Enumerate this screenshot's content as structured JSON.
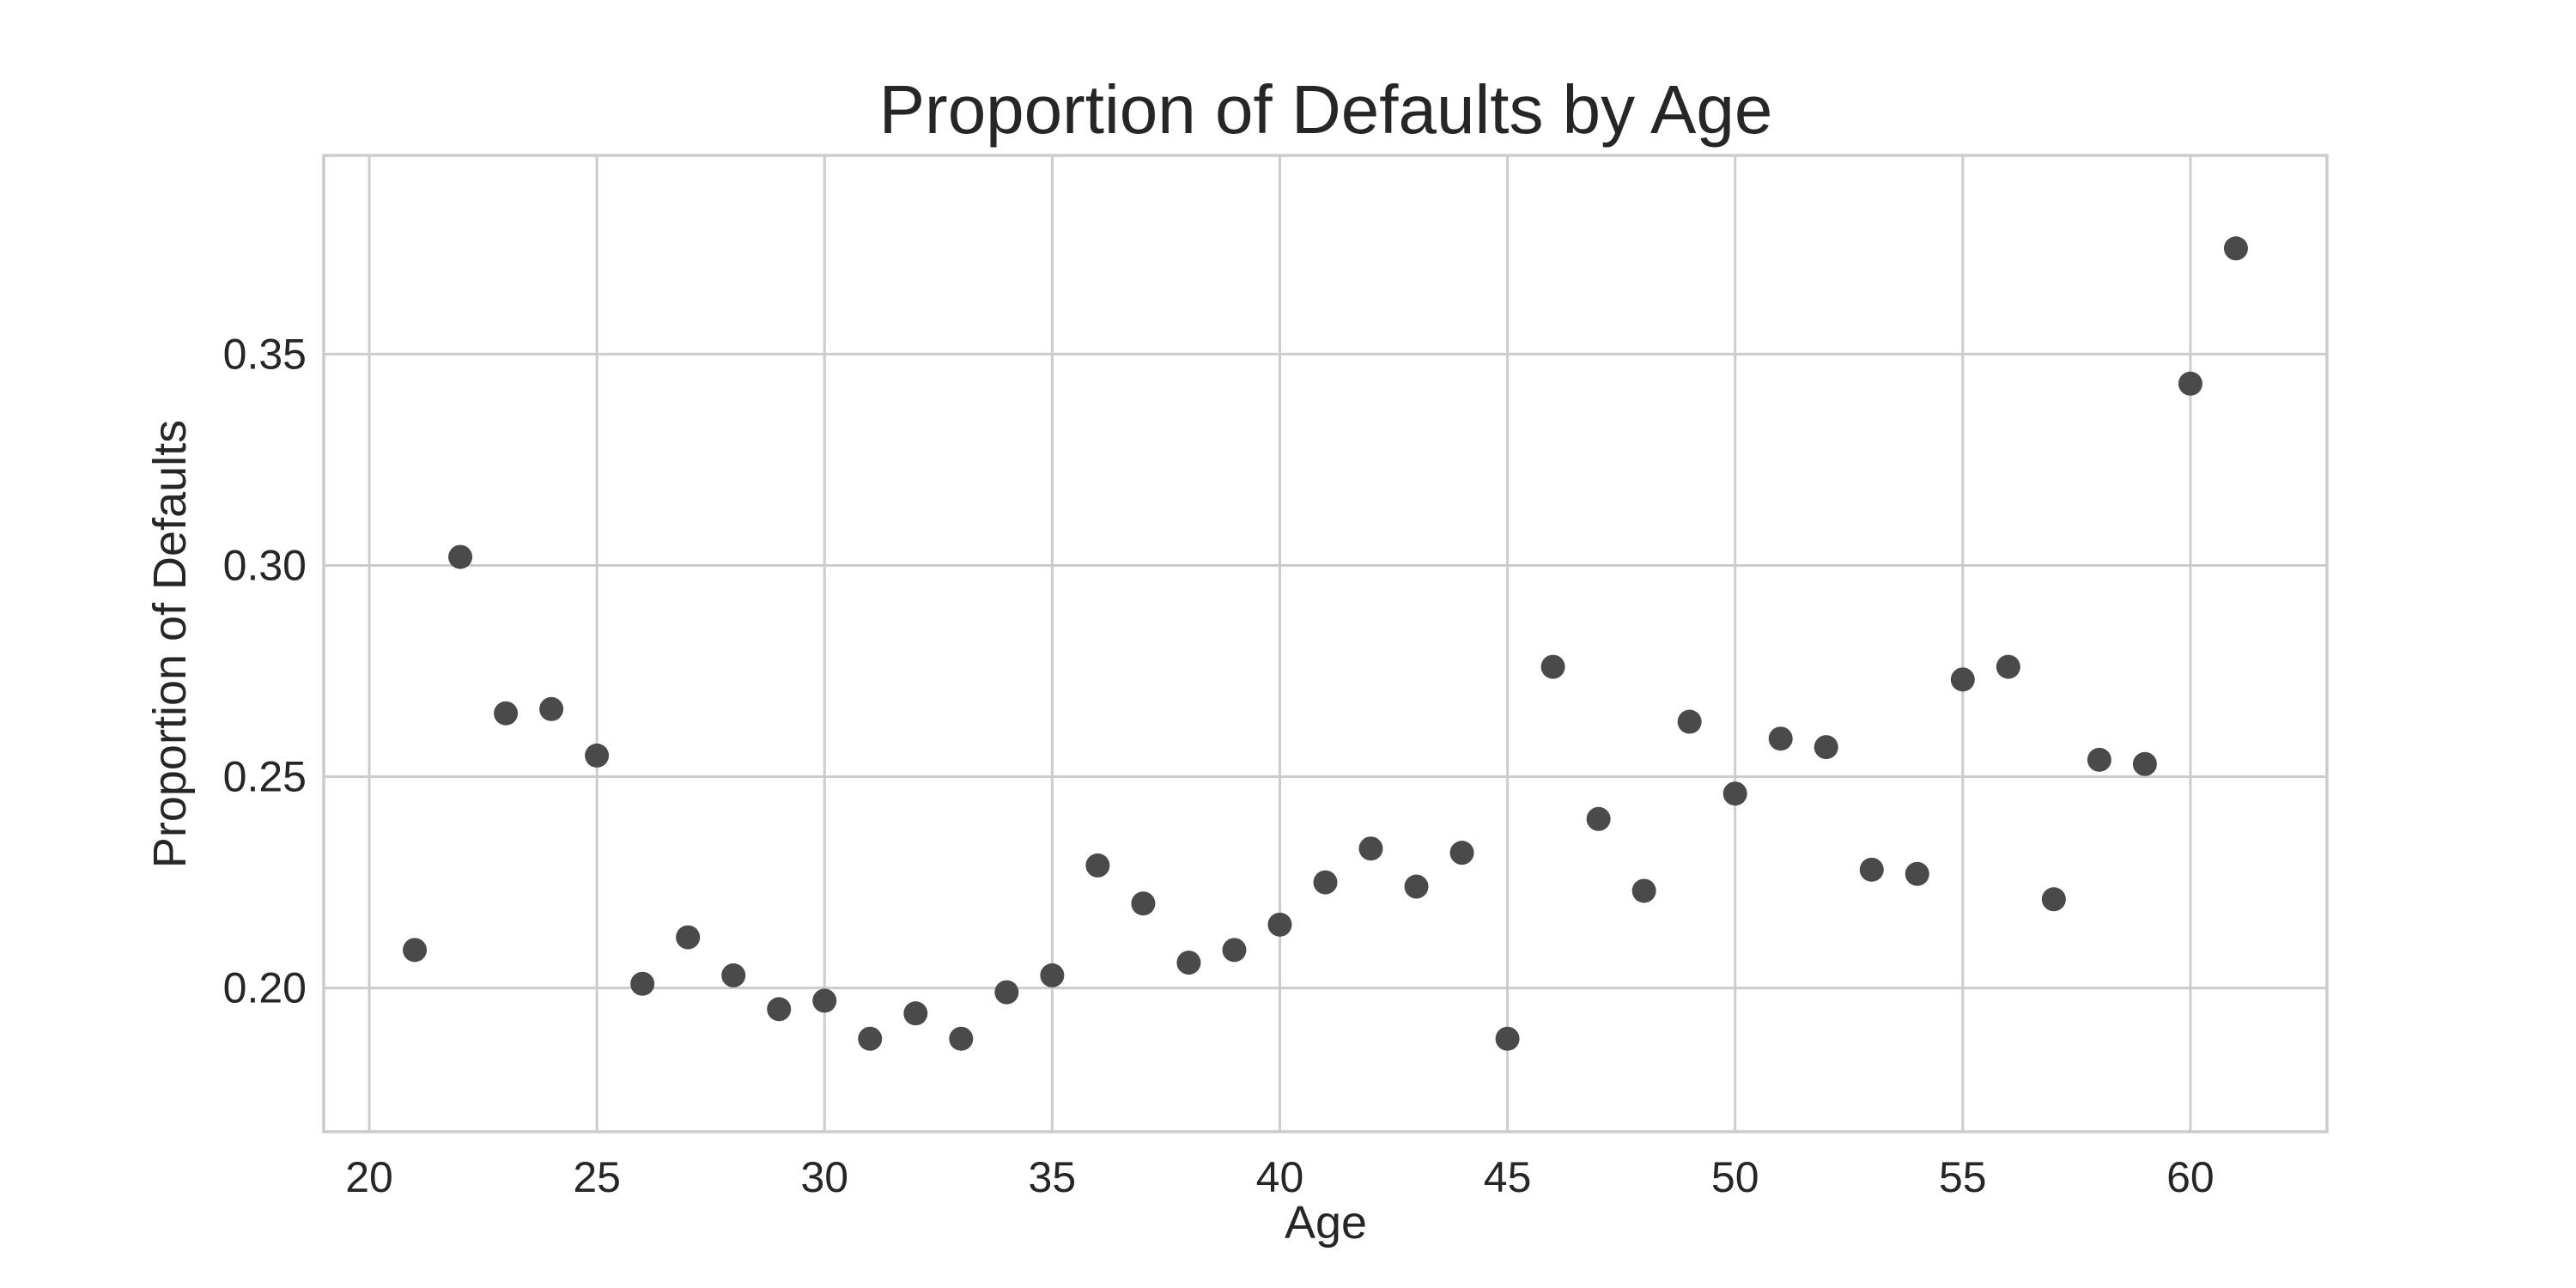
{
  "chart_data": {
    "type": "scatter",
    "title": "Proportion of Defaults by Age",
    "xlabel": "Age",
    "ylabel": "Proportion of Defaults",
    "xlim": [
      19,
      63
    ],
    "ylim": [
      0.166,
      0.397
    ],
    "xticks": [
      20,
      25,
      30,
      35,
      40,
      45,
      50,
      55,
      60
    ],
    "xtick_labels": [
      "20",
      "25",
      "30",
      "35",
      "40",
      "45",
      "50",
      "55",
      "60"
    ],
    "yticks": [
      0.2,
      0.25,
      0.3,
      0.35
    ],
    "ytick_labels": [
      "0.20",
      "0.25",
      "0.30",
      "0.35"
    ],
    "grid": true,
    "marker_color": "#4a4a4a",
    "x": [
      21,
      22,
      23,
      24,
      25,
      26,
      27,
      28,
      29,
      30,
      31,
      32,
      33,
      34,
      35,
      36,
      37,
      38,
      39,
      40,
      41,
      42,
      43,
      44,
      45,
      46,
      47,
      48,
      49,
      50,
      51,
      52,
      53,
      54,
      55,
      56,
      57,
      58,
      59,
      60,
      61
    ],
    "y": [
      0.209,
      0.302,
      0.265,
      0.266,
      0.255,
      0.201,
      0.212,
      0.203,
      0.195,
      0.197,
      0.188,
      0.194,
      0.188,
      0.199,
      0.203,
      0.229,
      0.22,
      0.206,
      0.209,
      0.215,
      0.225,
      0.233,
      0.224,
      0.232,
      0.188,
      0.276,
      0.24,
      0.223,
      0.263,
      0.246,
      0.259,
      0.257,
      0.228,
      0.227,
      0.273,
      0.276,
      0.221,
      0.254,
      0.253,
      0.343,
      0.375
    ]
  }
}
